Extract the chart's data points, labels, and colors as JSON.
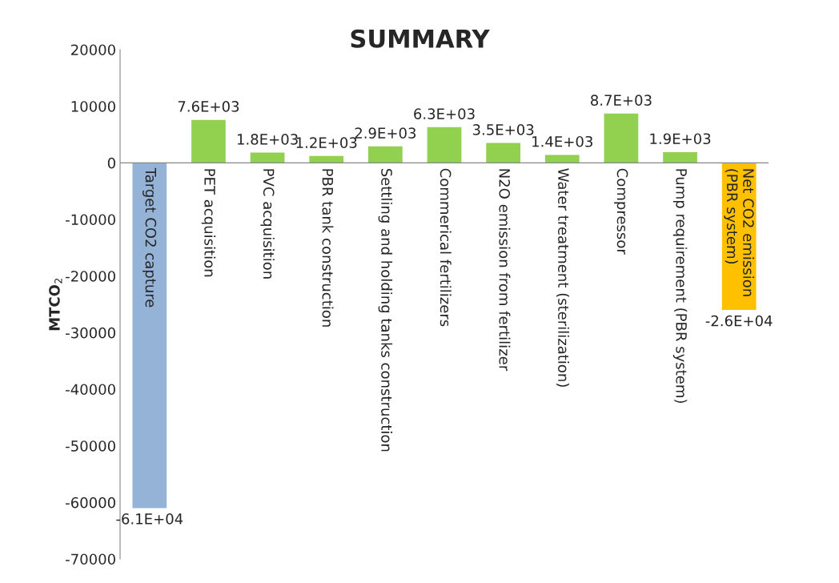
{
  "chart_data": {
    "type": "bar",
    "title": "SUMMARY",
    "ylabel": "MTCO$_{2}$",
    "categories": [
      "Target CO2 capture",
      "PET acquisition",
      "PVC acquisition",
      "PBR tank construction",
      "Settling and holding tanks construction",
      "Commerical fertilizers",
      "N2O emission from fertilizer",
      "Water treatment (sterilization)",
      "Compressor",
      "Pump requirement (PBR system)",
      "Net CO2 emission (PBR system)"
    ],
    "values": [
      -61000,
      7600,
      1800,
      1200,
      2900,
      6300,
      3500,
      1400,
      8700,
      1900,
      -26000
    ],
    "colors": [
      "#95b3d7",
      "#92d050",
      "#92d050",
      "#92d050",
      "#92d050",
      "#92d050",
      "#92d050",
      "#92d050",
      "#92d050",
      "#92d050",
      "#ffc000"
    ],
    "value_labels": [
      "-6.1E+04",
      "7.6E+03",
      "1.8E+03",
      "1.2E+03",
      "2.9E+03",
      "6.3E+03",
      "3.5E+03",
      "1.4E+03",
      "8.7E+03",
      "1.9E+03",
      "-2.6E+04"
    ],
    "ylim": [
      -70000,
      20000
    ],
    "yticks": [
      -70000,
      -60000,
      -50000,
      -40000,
      -30000,
      -20000,
      -10000,
      0,
      10000,
      20000
    ],
    "grid": false,
    "legend": false
  }
}
